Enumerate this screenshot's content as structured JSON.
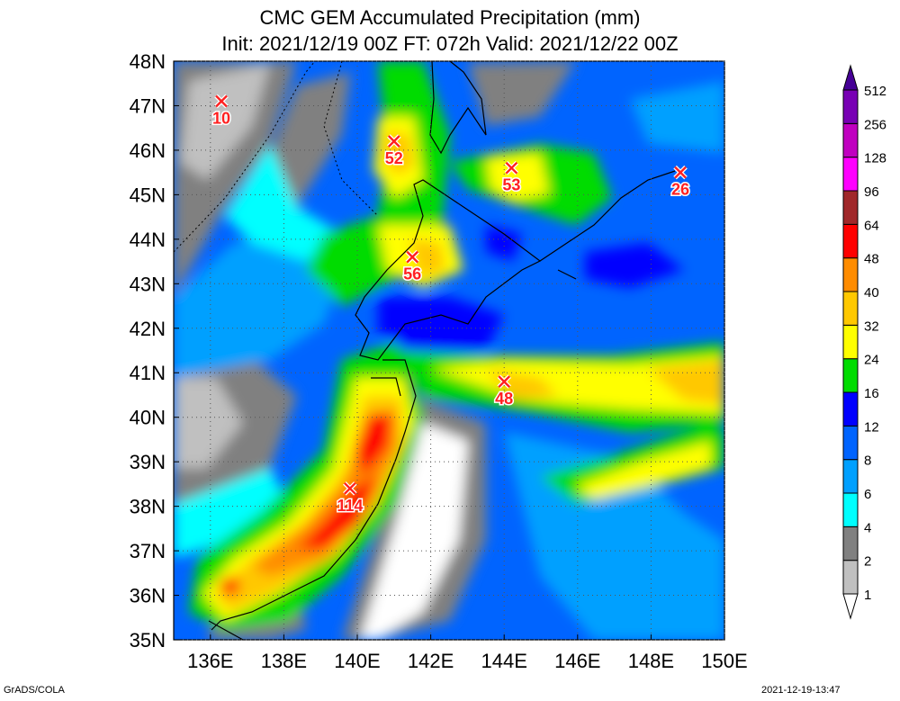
{
  "chart_data": {
    "type": "heatmap",
    "title": "CMC GEM Accumulated Precipitation (mm)",
    "subtitle": "Init: 2021/12/19 00Z  FT: 072h  Valid: 2021/12/22 00Z",
    "x_ticks": [
      "136E",
      "138E",
      "140E",
      "142E",
      "144E",
      "146E",
      "148E",
      "150E"
    ],
    "x_tick_values": [
      136,
      138,
      140,
      142,
      144,
      146,
      148,
      150
    ],
    "y_ticks": [
      "35N",
      "36N",
      "37N",
      "38N",
      "39N",
      "40N",
      "41N",
      "42N",
      "43N",
      "44N",
      "45N",
      "46N",
      "47N",
      "48N"
    ],
    "y_tick_values": [
      35,
      36,
      37,
      38,
      39,
      40,
      41,
      42,
      43,
      44,
      45,
      46,
      47,
      48
    ],
    "xlim": [
      135,
      150
    ],
    "ylim": [
      35,
      48
    ],
    "grid": true,
    "legend_placement": "right",
    "colorbar": {
      "levels": [
        "1",
        "2",
        "4",
        "6",
        "8",
        "12",
        "16",
        "24",
        "32",
        "40",
        "48",
        "64",
        "96",
        "128",
        "256",
        "512"
      ],
      "colors": [
        "#ffffff",
        "#c0c0c0",
        "#808080",
        "#00ffff",
        "#00a0ff",
        "#0064ff",
        "#0000ff",
        "#00dc00",
        "#ffff00",
        "#ffc800",
        "#ff8c00",
        "#ff0000",
        "#a0282a",
        "#ff00ff",
        "#c000c0",
        "#7800b4",
        "#460096"
      ]
    },
    "annotations": [
      {
        "label": "10",
        "lon": 136.3,
        "lat": 47.1
      },
      {
        "label": "52",
        "lon": 141.0,
        "lat": 46.2
      },
      {
        "label": "53",
        "lon": 144.2,
        "lat": 45.6
      },
      {
        "label": "26",
        "lon": 148.8,
        "lat": 45.5
      },
      {
        "label": "56",
        "lon": 141.5,
        "lat": 43.6
      },
      {
        "label": "48",
        "lon": 144.0,
        "lat": 40.8
      },
      {
        "label": "114",
        "lon": 139.8,
        "lat": 38.4
      }
    ]
  },
  "footer": {
    "left": "GrADS/COLA",
    "right": "2021-12-19-13:47"
  }
}
